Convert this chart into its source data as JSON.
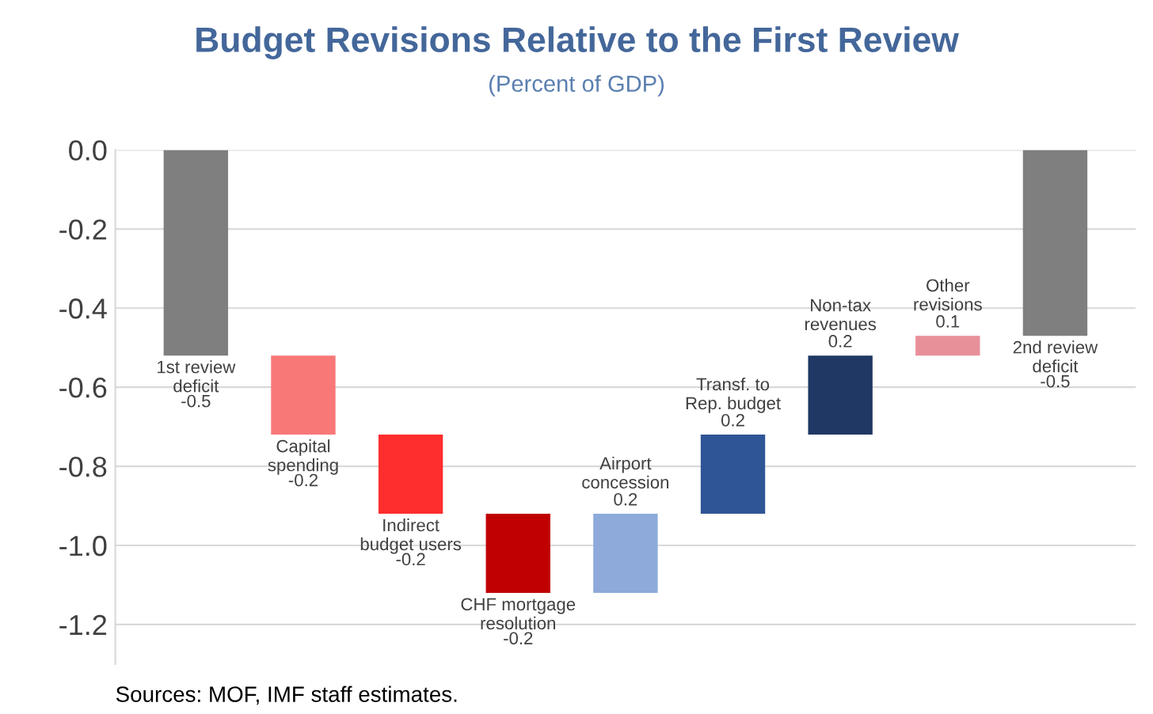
{
  "chart_data": {
    "type": "bar",
    "title": "Budget Revisions Relative to the First Review",
    "subtitle": "(Percent of GDP)",
    "categories": [
      "1st review deficit",
      "Capital spending",
      "Indirect budget users",
      "CHF mortgage resolution",
      "Airport concession",
      "Transf. to Rep. budget",
      "Non-tax revenues",
      "Other revisions",
      "2nd review deficit"
    ],
    "base": [
      0,
      -0.52,
      -0.72,
      -0.92,
      -1.12,
      -0.92,
      -0.72,
      -0.52,
      0
    ],
    "values": [
      -0.52,
      -0.2,
      -0.2,
      -0.2,
      0.2,
      0.2,
      0.2,
      0.05,
      -0.47
    ],
    "value_labels": [
      "-0.5",
      "-0.2",
      "-0.2",
      "-0.2",
      "0.2",
      "0.2",
      "0.2",
      "0.1",
      "-0.5"
    ],
    "colors": [
      "#7f7f7f",
      "#f87878",
      "#fe2e2e",
      "#c00000",
      "#8eaadb",
      "#2f5597",
      "#1f3864",
      "#e8909a",
      "#7f7f7f"
    ],
    "ylim": [
      -1.3,
      0.0
    ],
    "yticks": [
      {
        "value": 0.0,
        "label": "0.0"
      },
      -0.2,
      -0.4,
      -0.6,
      -0.8,
      {
        "value": -1.0,
        "label": "-1.0"
      },
      -1.2
    ],
    "grid": "y",
    "tick_labels": "y",
    "annotations": [
      "Sources: MOF, IMF staff estimates."
    ]
  }
}
